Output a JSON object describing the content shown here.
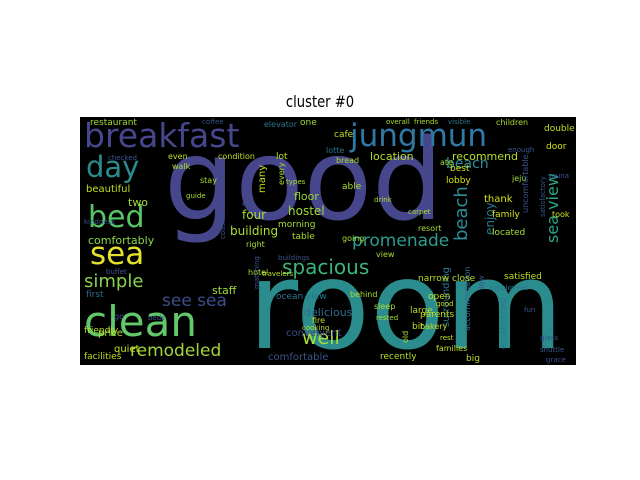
{
  "title": "cluster  #0",
  "words": [
    {
      "text": "good",
      "color": "#46468c"
    },
    {
      "text": "room",
      "color": "#2a8c8c"
    },
    {
      "text": "breakfast",
      "color": "#46468c"
    },
    {
      "text": "jungmun",
      "color": "#2f79a6"
    },
    {
      "text": "clean",
      "color": "#62c96b"
    },
    {
      "text": "sea",
      "color": "#e3e12a"
    },
    {
      "text": "bed",
      "color": "#56c667"
    },
    {
      "text": "day",
      "color": "#2a8c8c"
    },
    {
      "text": "spacious",
      "color": "#3bb57a"
    },
    {
      "text": "promenade",
      "color": "#2d9c8f"
    },
    {
      "text": "beach",
      "color": "#2d8c94"
    },
    {
      "text": "sea view",
      "color": "#2aa587"
    },
    {
      "text": "see sea",
      "color": "#3d4e8a"
    },
    {
      "text": "simple",
      "color": "#8ad14c"
    },
    {
      "text": "remodeled",
      "color": "#a5d43a"
    },
    {
      "text": "well",
      "color": "#a8db34"
    },
    {
      "text": "location",
      "color": "#b8de2a"
    },
    {
      "text": "recommend",
      "color": "#b8de2a"
    },
    {
      "text": "enjoy",
      "color": "#2a7a8e"
    },
    {
      "text": "hostel",
      "color": "#9fd838"
    },
    {
      "text": "floor",
      "color": "#9fd838"
    },
    {
      "text": "comfortably",
      "color": "#8ed645"
    },
    {
      "text": "two",
      "color": "#a0da39"
    },
    {
      "text": "beautiful",
      "color": "#c2df23"
    },
    {
      "text": "four",
      "color": "#aadc32"
    },
    {
      "text": "building",
      "color": "#aadc32"
    },
    {
      "text": "staff",
      "color": "#a2da37"
    },
    {
      "text": "delicious",
      "color": "#2f6c8e"
    },
    {
      "text": "convenient",
      "color": "#3e4a89"
    },
    {
      "text": "comfortable",
      "color": "#3a548c"
    },
    {
      "text": "quiet",
      "color": "#c8e020"
    },
    {
      "text": "price",
      "color": "#a8db34"
    },
    {
      "text": "facilities",
      "color": "#c0df25"
    },
    {
      "text": "friendly",
      "color": "#b5de2b"
    },
    {
      "text": "first",
      "color": "#2f6c8e"
    },
    {
      "text": "restaurant",
      "color": "#a0da39"
    },
    {
      "text": "coffee",
      "color": "#3a548c"
    },
    {
      "text": "elevator",
      "color": "#2a768e"
    },
    {
      "text": "one",
      "color": "#9bd93c"
    },
    {
      "text": "cafe",
      "color": "#b8de2a"
    },
    {
      "text": "double",
      "color": "#c2df23"
    },
    {
      "text": "even",
      "color": "#c2df23"
    },
    {
      "text": "condition",
      "color": "#c2df23"
    },
    {
      "text": "lot",
      "color": "#c2df23"
    },
    {
      "text": "bread",
      "color": "#aadc32"
    },
    {
      "text": "lotte",
      "color": "#2a768e"
    },
    {
      "text": "best",
      "color": "#d5e21a"
    },
    {
      "text": "lobby",
      "color": "#d5e21a"
    },
    {
      "text": "thank",
      "color": "#d5e21a"
    },
    {
      "text": "family",
      "color": "#d5e21a"
    },
    {
      "text": "took",
      "color": "#d5e21a"
    },
    {
      "text": "door",
      "color": "#d5e21a"
    },
    {
      "text": "jeju",
      "color": "#a2da37"
    },
    {
      "text": "ate",
      "color": "#a2da37"
    },
    {
      "text": "stay",
      "color": "#aadc32"
    },
    {
      "text": "able",
      "color": "#aadc32"
    },
    {
      "text": "walk",
      "color": "#aadc32"
    },
    {
      "text": "many",
      "color": "#c2df23"
    },
    {
      "text": "every",
      "color": "#aadc32"
    },
    {
      "text": "guide",
      "color": "#aadc32"
    },
    {
      "text": "table",
      "color": "#aadc32"
    },
    {
      "text": "morning",
      "color": "#a8db34"
    },
    {
      "text": "going",
      "color": "#aadc32"
    },
    {
      "text": "resort",
      "color": "#aadc32"
    },
    {
      "text": "right",
      "color": "#aadc32"
    },
    {
      "text": "hotel",
      "color": "#aadc32"
    },
    {
      "text": "view",
      "color": "#aadc32"
    },
    {
      "text": "behind",
      "color": "#aadc32"
    },
    {
      "text": "types",
      "color": "#aadc32"
    },
    {
      "text": "drink",
      "color": "#aadc32"
    },
    {
      "text": "carpet",
      "color": "#aadc32"
    },
    {
      "text": "ocean view",
      "color": "#2a768e"
    },
    {
      "text": "large",
      "color": "#b8de2a"
    },
    {
      "text": "bit",
      "color": "#b8de2a"
    },
    {
      "text": "sleep",
      "color": "#aadc32"
    },
    {
      "text": "rested",
      "color": "#aadc32"
    },
    {
      "text": "old",
      "color": "#aadc32"
    },
    {
      "text": "surrounding",
      "color": "#2a768e"
    },
    {
      "text": "accommodation",
      "color": "#2f6c8e"
    },
    {
      "text": "low",
      "color": "#3a548c"
    },
    {
      "text": "narrow",
      "color": "#b8de2a"
    },
    {
      "text": "close",
      "color": "#b8de2a"
    },
    {
      "text": "satisfied",
      "color": "#c2df23"
    },
    {
      "text": "employees",
      "color": "#2a768e"
    },
    {
      "text": "open",
      "color": "#c2df23"
    },
    {
      "text": "parents",
      "color": "#c2df23"
    },
    {
      "text": "bakery",
      "color": "#c2df23"
    },
    {
      "text": "good",
      "color": "#c2df23"
    },
    {
      "text": "rest",
      "color": "#c2df23"
    },
    {
      "text": "families",
      "color": "#c2df23"
    },
    {
      "text": "established",
      "color": "#2a768e"
    },
    {
      "text": "recently",
      "color": "#b8de2a"
    },
    {
      "text": "big",
      "color": "#b8de2a"
    },
    {
      "text": "located",
      "color": "#aadc32"
    },
    {
      "text": "fire",
      "color": "#b8de2a"
    },
    {
      "text": "cooking",
      "color": "#b8de2a"
    },
    {
      "text": "children",
      "color": "#aadc32"
    },
    {
      "text": "friends",
      "color": "#aadc32"
    },
    {
      "text": "overall",
      "color": "#aadc32"
    },
    {
      "text": "visible",
      "color": "#2a768e"
    },
    {
      "text": "uncomfortable",
      "color": "#3a548c"
    },
    {
      "text": "travelers",
      "color": "#b8de2a"
    },
    {
      "text": "buffet",
      "color": "#3a548c"
    },
    {
      "text": "kindness",
      "color": "#3a548c"
    },
    {
      "text": "sauna",
      "color": "#3a548c"
    },
    {
      "text": "ello",
      "color": "#3a548c"
    },
    {
      "text": "checked",
      "color": "#3a548c"
    },
    {
      "text": "coastal",
      "color": "#3a548c"
    },
    {
      "text": "satisfactory",
      "color": "#3a548c"
    },
    {
      "text": "matching",
      "color": "#3a548c"
    },
    {
      "text": "beds",
      "color": "#3a548c"
    },
    {
      "text": "go",
      "color": "#3a548c"
    },
    {
      "text": "buildings",
      "color": "#3a548c"
    },
    {
      "text": "enough",
      "color": "#3a548c"
    },
    {
      "text": "glass",
      "color": "#3a548c"
    },
    {
      "text": "shuttle",
      "color": "#3a548c"
    },
    {
      "text": "grace",
      "color": "#3a548c"
    },
    {
      "text": "fun",
      "color": "#3a548c"
    }
  ]
}
